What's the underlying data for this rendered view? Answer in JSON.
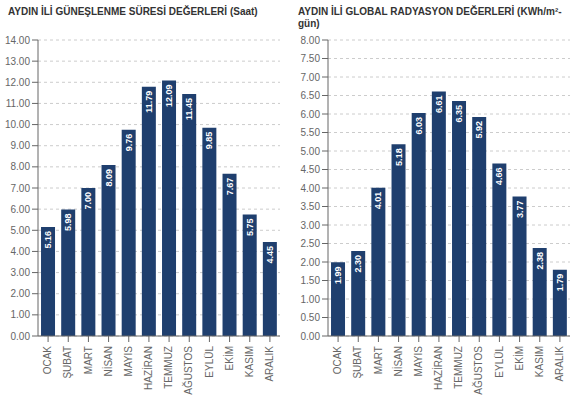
{
  "chart_data": [
    {
      "type": "bar",
      "title": "AYDIN İLİ GÜNEŞLENME SÜRESİ DEĞERLERİ (Saat)",
      "categories": [
        "OCAK",
        "ŞUBAT",
        "MART",
        "NİSAN",
        "MAYIS",
        "HAZİRAN",
        "TEMMUZ",
        "AĞUSTOS",
        "EYLÜL",
        "EKİM",
        "KASIM",
        "ARALIK"
      ],
      "values": [
        5.16,
        5.98,
        7.0,
        8.09,
        9.76,
        11.79,
        12.09,
        11.45,
        9.85,
        7.67,
        5.75,
        4.45
      ],
      "value_labels": [
        "5.16",
        "5.98",
        "7.00",
        "8.09",
        "9.76",
        "11.79",
        "12.09",
        "11.45",
        "9.85",
        "7.67",
        "5.75",
        "4.45"
      ],
      "color": "#1F3F6E",
      "ylim": [
        0,
        14.0
      ],
      "yticks": [
        {
          "value": 0.0,
          "label": "0.00"
        },
        {
          "value": 1.0,
          "label": "1.00"
        },
        {
          "value": 2.0,
          "label": "2.00"
        },
        {
          "value": 3.0,
          "label": "3.00"
        },
        {
          "value": 4.0,
          "label": "4.00"
        },
        {
          "value": 5.0,
          "label": "5.00"
        },
        {
          "value": 6.0,
          "label": "6.00"
        },
        {
          "value": 7.0,
          "label": "7.00"
        },
        {
          "value": 8.0,
          "label": "8.00"
        },
        {
          "value": 9.0,
          "label": "9.00"
        },
        {
          "value": 10.0,
          "label": "10.00"
        },
        {
          "value": 11.0,
          "label": "11.00"
        },
        {
          "value": 12.0,
          "label": "12.00"
        },
        {
          "value": 13.0,
          "label": "13.00"
        },
        {
          "value": 14.0,
          "label": "14.00"
        }
      ],
      "grid": true,
      "data_labels": true
    },
    {
      "type": "bar",
      "title": "AYDIN İLİ GLOBAL RADYASYON DEĞERLERİ (KWh/m²-gün)",
      "categories": [
        "OCAK",
        "ŞUBAT",
        "MART",
        "NİSAN",
        "MAYIS",
        "HAZİRAN",
        "TEMMUZ",
        "AĞUSTOS",
        "EYLÜL",
        "EKİM",
        "KASIM",
        "ARALIK"
      ],
      "values": [
        1.99,
        2.3,
        4.01,
        5.18,
        6.03,
        6.61,
        6.35,
        5.92,
        4.66,
        3.77,
        2.38,
        1.79
      ],
      "value_labels": [
        "1.99",
        "2.30",
        "4.01",
        "5.18",
        "6.03",
        "6.61",
        "6.35",
        "5.92",
        "4.66",
        "3.77",
        "2.38",
        "1.79"
      ],
      "color": "#1F3F6E",
      "ylim": [
        0,
        8.0
      ],
      "yticks": [
        {
          "value": 0.0,
          "label": "0.00"
        },
        {
          "value": 0.5,
          "label": "0.50"
        },
        {
          "value": 1.0,
          "label": "1.00"
        },
        {
          "value": 1.5,
          "label": "1.50"
        },
        {
          "value": 2.0,
          "label": "2.00"
        },
        {
          "value": 2.5,
          "label": "2.50"
        },
        {
          "value": 3.0,
          "label": "3.00"
        },
        {
          "value": 3.5,
          "label": "3.50"
        },
        {
          "value": 4.0,
          "label": "4.00"
        },
        {
          "value": 4.5,
          "label": "4.50"
        },
        {
          "value": 5.0,
          "label": "5.00"
        },
        {
          "value": 5.5,
          "label": "5.50"
        },
        {
          "value": 6.0,
          "label": "6.00"
        },
        {
          "value": 6.5,
          "label": "6.50"
        },
        {
          "value": 7.0,
          "label": "7.00"
        },
        {
          "value": 7.5,
          "label": "7.50"
        },
        {
          "value": 8.0,
          "label": "8.00"
        }
      ],
      "grid": true,
      "data_labels": true
    }
  ]
}
